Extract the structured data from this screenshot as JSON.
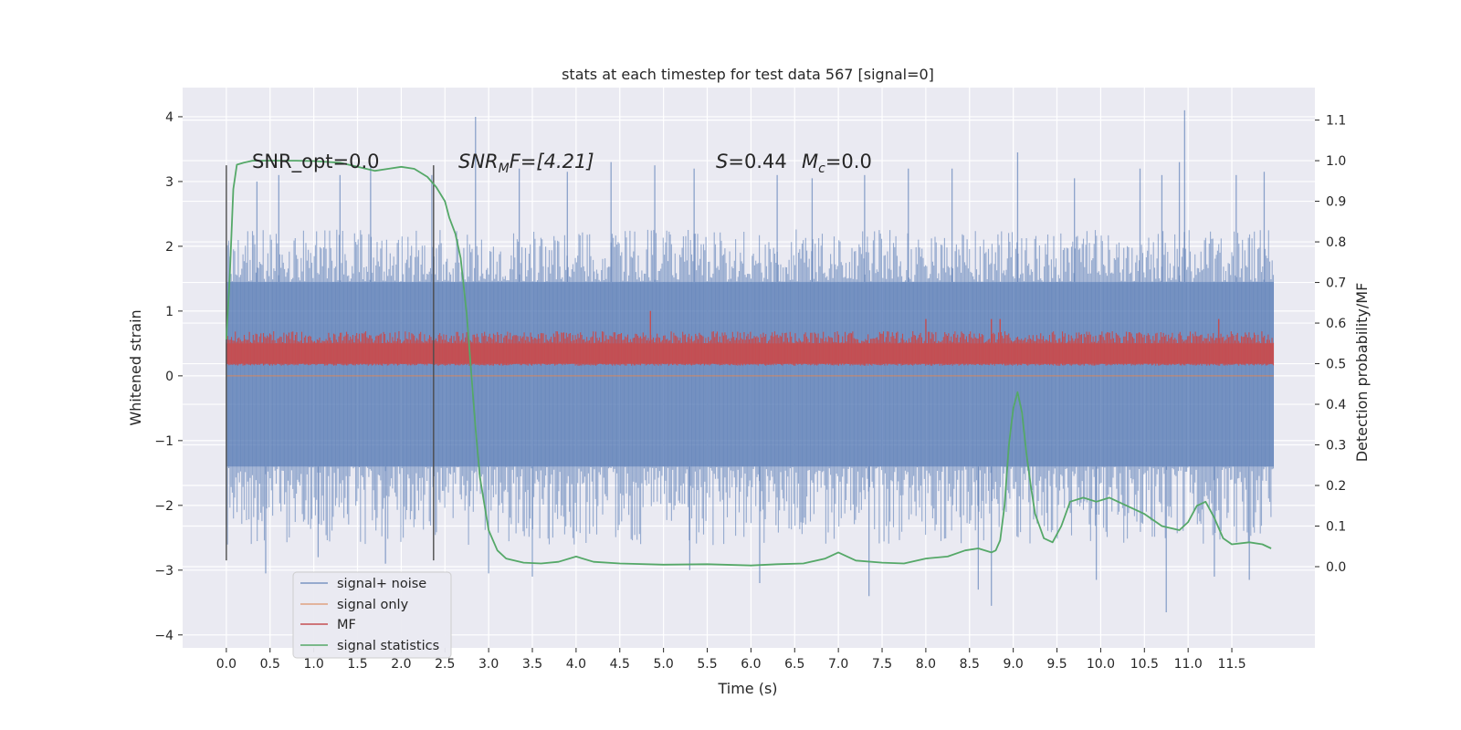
{
  "chart_data": {
    "type": "line",
    "title": "stats at each timestep for test data 567 [signal=0]",
    "xlabel": "Time (s)",
    "ylabel": "Whitened strain",
    "ylabel_right": "Detection probability/MF",
    "xlim": [
      -0.5,
      12.45
    ],
    "ylim": [
      -4.2,
      4.45
    ],
    "ylim_right": [
      -0.2,
      1.18
    ],
    "x_ticks": [
      0.0,
      0.5,
      1.0,
      1.5,
      2.0,
      2.5,
      3.0,
      3.5,
      4.0,
      4.5,
      5.0,
      5.5,
      6.0,
      6.5,
      7.0,
      7.5,
      8.0,
      8.5,
      9.0,
      9.5,
      10.0,
      10.5,
      11.0,
      11.5
    ],
    "x_tick_labels": [
      "0.0",
      "0.5",
      "1.0",
      "1.5",
      "2.0",
      "2.5",
      "3.0",
      "3.5",
      "4.0",
      "4.5",
      "5.0",
      "5.5",
      "6.0",
      "6.5",
      "7.0",
      "7.5",
      "8.0",
      "8.5",
      "9.0",
      "9.5",
      "10.0",
      "10.5",
      "11.0",
      "11.5"
    ],
    "y_ticks": [
      4,
      3,
      2,
      1,
      0,
      -1,
      -2,
      -3,
      -4
    ],
    "y_tick_labels": [
      "4",
      "3",
      "2",
      "1",
      "0",
      "−1",
      "−2",
      "−3",
      "−4"
    ],
    "y_ticks_right": [
      1.1,
      1.0,
      0.9,
      0.8,
      0.7,
      0.6,
      0.5,
      0.4,
      0.3,
      0.2,
      0.1,
      0.0
    ],
    "y_tick_labels_right": [
      "1.1",
      "1.0",
      "0.9",
      "0.8",
      "0.7",
      "0.6",
      "0.5",
      "0.4",
      "0.3",
      "0.2",
      "0.1",
      "0.0"
    ],
    "grid": true,
    "legend_position": "lower-left",
    "background_color": "#eaeaf2",
    "series": [
      {
        "name": "signal+ noise",
        "color": "#4c72b0",
        "axis": "left",
        "x_range": [
          0,
          11.98
        ],
        "core_band": [
          -1.4,
          1.45
        ],
        "envelope": [
          -2.3,
          2.05
        ],
        "peak_max": 4.1,
        "peak_min": -3.7,
        "spikes": [
          [
            0.35,
            3.0
          ],
          [
            0.45,
            -3.05
          ],
          [
            0.6,
            3.1
          ],
          [
            1.05,
            -2.8
          ],
          [
            1.3,
            3.1
          ],
          [
            1.65,
            3.25
          ],
          [
            1.82,
            -2.9
          ],
          [
            2.35,
            3.1
          ],
          [
            2.85,
            4.0
          ],
          [
            3.0,
            -3.05
          ],
          [
            3.35,
            3.2
          ],
          [
            3.5,
            -3.1
          ],
          [
            3.9,
            3.15
          ],
          [
            4.4,
            3.3
          ],
          [
            4.9,
            3.25
          ],
          [
            5.3,
            -3.0
          ],
          [
            5.35,
            3.2
          ],
          [
            6.1,
            -3.2
          ],
          [
            6.3,
            3.1
          ],
          [
            6.7,
            3.05
          ],
          [
            7.3,
            3.1
          ],
          [
            7.35,
            -3.4
          ],
          [
            7.8,
            3.2
          ],
          [
            8.3,
            3.2
          ],
          [
            8.6,
            -3.3
          ],
          [
            8.75,
            -3.55
          ],
          [
            9.05,
            3.45
          ],
          [
            9.7,
            3.05
          ],
          [
            9.95,
            -3.15
          ],
          [
            10.45,
            3.2
          ],
          [
            10.7,
            3.1
          ],
          [
            10.75,
            -3.65
          ],
          [
            10.9,
            3.3
          ],
          [
            10.96,
            4.1
          ],
          [
            11.3,
            -3.1
          ],
          [
            11.55,
            3.1
          ],
          [
            11.7,
            -3.15
          ],
          [
            11.87,
            3.15
          ]
        ]
      },
      {
        "name": "signal only",
        "color": "#dd8452",
        "axis": "left",
        "x": [
          0.0,
          11.98
        ],
        "y": [
          0.0,
          0.0
        ]
      },
      {
        "name": "MF",
        "color": "#c44e52",
        "axis": "right",
        "x_range": [
          0,
          11.98
        ],
        "core_band": [
          0.5,
          0.55
        ],
        "envelope": [
          0.495,
          0.58
        ],
        "spikes": [
          [
            4.85,
            0.63
          ],
          [
            8.0,
            0.61
          ],
          [
            8.75,
            0.61
          ],
          [
            8.85,
            0.61
          ],
          [
            11.35,
            0.61
          ]
        ]
      },
      {
        "name": "signal statistics",
        "color": "#55a868",
        "axis": "right",
        "x": [
          0.0,
          0.04,
          0.08,
          0.12,
          0.2,
          0.3,
          0.5,
          0.8,
          1.0,
          1.3,
          1.5,
          1.7,
          1.85,
          2.0,
          2.15,
          2.3,
          2.4,
          2.5,
          2.55,
          2.62,
          2.68,
          2.75,
          2.8,
          2.85,
          2.9,
          3.0,
          3.1,
          3.2,
          3.4,
          3.6,
          3.8,
          4.0,
          4.2,
          4.5,
          5.0,
          5.5,
          6.0,
          6.3,
          6.6,
          6.85,
          7.0,
          7.2,
          7.5,
          7.75,
          8.0,
          8.25,
          8.45,
          8.6,
          8.75,
          8.8,
          8.85,
          8.9,
          8.95,
          9.0,
          9.05,
          9.1,
          9.15,
          9.2,
          9.25,
          9.3,
          9.35,
          9.45,
          9.55,
          9.65,
          9.8,
          9.95,
          10.1,
          10.3,
          10.5,
          10.7,
          10.9,
          11.0,
          11.1,
          11.2,
          11.3,
          11.4,
          11.5,
          11.7,
          11.85,
          11.95
        ],
        "y": [
          0.56,
          0.72,
          0.93,
          0.99,
          0.995,
          1.0,
          1.0,
          1.0,
          0.999,
          0.995,
          0.985,
          0.975,
          0.98,
          0.985,
          0.98,
          0.96,
          0.935,
          0.9,
          0.86,
          0.82,
          0.76,
          0.62,
          0.48,
          0.34,
          0.22,
          0.09,
          0.04,
          0.02,
          0.01,
          0.008,
          0.012,
          0.025,
          0.012,
          0.008,
          0.005,
          0.006,
          0.003,
          0.006,
          0.008,
          0.02,
          0.035,
          0.015,
          0.01,
          0.008,
          0.02,
          0.025,
          0.04,
          0.045,
          0.035,
          0.04,
          0.065,
          0.15,
          0.3,
          0.39,
          0.43,
          0.38,
          0.28,
          0.2,
          0.13,
          0.1,
          0.07,
          0.06,
          0.1,
          0.16,
          0.17,
          0.16,
          0.17,
          0.15,
          0.13,
          0.1,
          0.09,
          0.11,
          0.15,
          0.16,
          0.12,
          0.07,
          0.055,
          0.06,
          0.055,
          0.045
        ]
      }
    ],
    "vertical_lines": [
      {
        "x": 0.0,
        "ymin": -2.85,
        "ymax": 3.25,
        "color": "#4d4d4d"
      },
      {
        "x": 2.37,
        "ymin": -2.85,
        "ymax": 3.25,
        "color": "#4d4d4d"
      }
    ],
    "annotations": {
      "snr_opt": "SNR_opt=0.0",
      "snr_mf_sym": "SNR",
      "snr_mf_sub": "M",
      "snr_mf_rest": "F=[4.21]",
      "s_sym": "S",
      "s_rest": "=0.44",
      "mc_sym": "M",
      "mc_sub": "c",
      "mc_rest": "=0.0"
    }
  }
}
